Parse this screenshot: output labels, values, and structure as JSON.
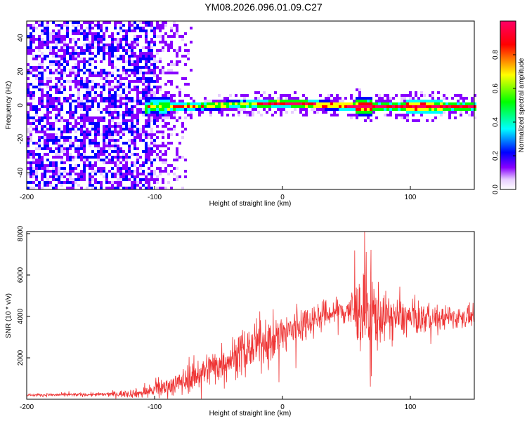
{
  "title": "YM08.2026.096.01.09.C27",
  "chart_data": [
    {
      "type": "heatmap",
      "xlabel": "Height of straight line (km)",
      "ylabel": "Frequency (Hz)",
      "xlim": [
        -200,
        150
      ],
      "ylim": [
        -50,
        50
      ],
      "x_ticks": [
        -200,
        -100,
        0,
        100
      ],
      "y_ticks": [
        -40,
        -20,
        0,
        20,
        40
      ],
      "colorbar": {
        "label": "Normalized spectral amplitude",
        "range": [
          0,
          1
        ],
        "ticks": [
          0.0,
          0.2,
          0.4,
          0.6,
          0.8
        ],
        "colors": [
          "#ffffff",
          "#e6ccff",
          "#8800ff",
          "#0000ff",
          "#00ffff",
          "#00ff00",
          "#ffff00",
          "#ff0000",
          "#ff0066"
        ]
      },
      "ridge": {
        "x": [
          -105,
          -80,
          -40,
          0,
          60,
          100,
          150
        ],
        "frequency_hz": [
          0,
          0,
          1,
          2,
          0,
          0,
          0
        ]
      }
    },
    {
      "type": "line",
      "xlabel": "Height of straight line (km)",
      "ylabel": "SNR (10 * v/v)",
      "xlim": [
        -200,
        150
      ],
      "ylim": [
        0,
        8100
      ],
      "x_ticks": [
        -200,
        -100,
        0,
        100
      ],
      "y_ticks": [
        2000,
        4000,
        6000,
        8000
      ],
      "color": "#ee3333",
      "envelope": {
        "x": [
          -200,
          -140,
          -110,
          -100,
          -80,
          -60,
          -40,
          -20,
          0,
          20,
          40,
          50,
          60,
          65,
          70,
          80,
          100,
          120,
          150
        ],
        "mean": [
          200,
          230,
          300,
          450,
          800,
          1400,
          2000,
          2600,
          3100,
          3800,
          4200,
          4300,
          4200,
          4300,
          4100,
          4000,
          3900,
          3900,
          4000
        ],
        "spread": [
          60,
          80,
          200,
          300,
          500,
          700,
          800,
          900,
          900,
          700,
          500,
          700,
          1400,
          2200,
          1800,
          900,
          700,
          500,
          400
        ]
      }
    }
  ]
}
